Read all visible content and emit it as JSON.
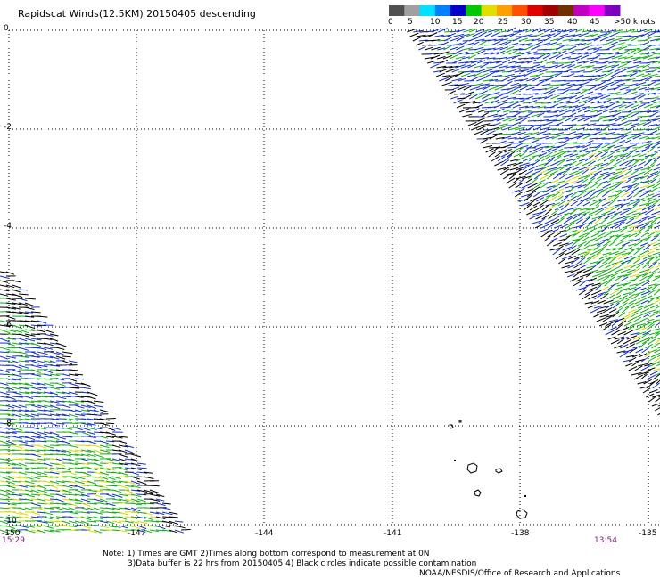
{
  "title": "Rapidscat Winds(12.5KM) 20150405 descending",
  "legend": {
    "labels": [
      "0",
      "5",
      "10",
      "15",
      "20",
      "25",
      "30",
      "35",
      "40",
      "45",
      ">50 knots"
    ],
    "colors": [
      "#505050",
      "#a0a0a0",
      "#00e0ff",
      "#0080ff",
      "#0000c8",
      "#00c800",
      "#e0e000",
      "#ffa000",
      "#ff5000",
      "#e00000",
      "#a00000",
      "#703000",
      "#c000c0",
      "#ff00ff",
      "#8000c0"
    ]
  },
  "axes": {
    "lat_labels": [
      "0",
      "-2",
      "-4",
      "-6",
      "-8",
      "-10"
    ],
    "lon_labels": [
      "-150",
      "-147",
      "-144",
      "-141",
      "-138",
      "-135"
    ]
  },
  "times": {
    "left": "15:29",
    "right": "13:54"
  },
  "notes": [
    "Note: 1) Times are GMT 2)Times along bottom correspond to measurement at 0N",
    "3)Data buffer is 22 hrs from 20150405 4) Black circles indicate possible contamination",
    "NOAA/NESDIS/Office of Research and Applications"
  ],
  "swath_colors": {
    "blue": "#1030d0",
    "green": "#10b010",
    "black": "#000000",
    "yellow": "#d8d800"
  }
}
